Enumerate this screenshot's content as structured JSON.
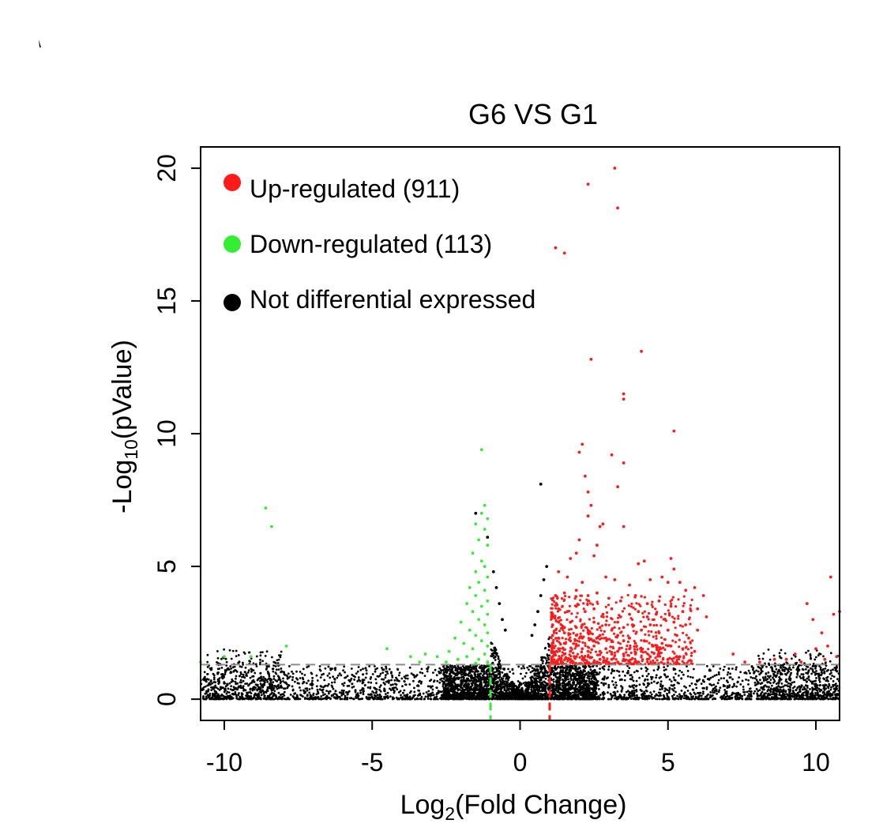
{
  "chart_data": {
    "type": "scatter",
    "title": "G6 VS G1",
    "xlabel": {
      "base": "Log",
      "sub": "2",
      "rest": "(Fold Change)"
    },
    "ylabel": {
      "base": "-Log",
      "sub": "10",
      "rest": "(pValue)"
    },
    "xlim": [
      -10.8,
      10.8
    ],
    "ylim": [
      -0.8,
      20.8
    ],
    "xticks": [
      -10,
      -5,
      0,
      5,
      10
    ],
    "xtick_labels": [
      "-10",
      "-5",
      "0",
      "5",
      "10"
    ],
    "yticks": [
      0,
      5,
      10,
      15,
      20
    ],
    "ytick_labels": [
      "0",
      "5",
      "10",
      "15",
      "20"
    ],
    "thresholds": {
      "log2fc_low": -1,
      "log2fc_high": 1,
      "neg_log10_p": 1.3
    },
    "legend": {
      "placement": "top-left",
      "items": [
        {
          "label": "Up-regulated (911)",
          "color": "#ff1a1a"
        },
        {
          "label": "Down-regulated (113)",
          "color": "#33ee33"
        },
        {
          "label": "Not differential expressed",
          "color": "#000000"
        }
      ]
    },
    "colors": {
      "up": "#ff1a1a",
      "down": "#33ee33",
      "ns": "#000000",
      "threshold_line": "#8c8c8c"
    },
    "series": [
      {
        "name": "Up-regulated (911)",
        "color": "#ff1a1a",
        "points": [
          [
            3.2,
            20.0
          ],
          [
            2.3,
            19.4
          ],
          [
            3.3,
            18.5
          ],
          [
            1.5,
            16.8
          ],
          [
            1.2,
            17.0
          ],
          [
            4.1,
            13.1
          ],
          [
            2.4,
            12.8
          ],
          [
            3.5,
            11.5
          ],
          [
            3.5,
            11.3
          ],
          [
            5.2,
            10.1
          ],
          [
            2.1,
            9.6
          ],
          [
            2.0,
            9.3
          ],
          [
            3.1,
            9.2
          ],
          [
            3.5,
            8.9
          ],
          [
            2.2,
            8.4
          ],
          [
            3.3,
            8.0
          ],
          [
            2.3,
            7.8
          ],
          [
            2.4,
            7.3
          ],
          [
            2.3,
            6.9
          ],
          [
            2.7,
            6.5
          ],
          [
            2.8,
            6.6
          ],
          [
            3.5,
            6.5
          ],
          [
            2.0,
            6.0
          ],
          [
            2.6,
            5.8
          ],
          [
            1.9,
            5.5
          ],
          [
            1.7,
            5.3
          ],
          [
            2.5,
            5.4
          ],
          [
            4.2,
            5.2
          ],
          [
            5.1,
            5.3
          ],
          [
            4.0,
            5.1
          ],
          [
            5.2,
            4.9
          ],
          [
            4.8,
            4.6
          ],
          [
            5.0,
            4.4
          ],
          [
            5.4,
            4.4
          ],
          [
            6.2,
            3.9
          ],
          [
            5.9,
            4.2
          ],
          [
            5.6,
            4.1
          ],
          [
            1.3,
            4.8
          ],
          [
            1.6,
            4.6
          ],
          [
            2.1,
            4.4
          ],
          [
            2.9,
            4.6
          ],
          [
            3.2,
            4.5
          ],
          [
            3.7,
            4.3
          ],
          [
            4.4,
            4.5
          ],
          [
            1.2,
            3.9
          ],
          [
            1.5,
            4.0
          ],
          [
            1.9,
            4.1
          ],
          [
            2.3,
            3.9
          ],
          [
            2.6,
            4.0
          ],
          [
            3.0,
            3.8
          ],
          [
            3.4,
            3.7
          ],
          [
            3.9,
            3.9
          ],
          [
            4.3,
            3.6
          ],
          [
            4.7,
            3.7
          ],
          [
            5.1,
            3.5
          ],
          [
            5.5,
            3.3
          ],
          [
            6.0,
            3.4
          ],
          [
            6.3,
            3.1
          ],
          [
            10.5,
            4.6
          ],
          [
            10.6,
            3.2
          ],
          [
            10.8,
            3.3
          ],
          [
            9.7,
            3.6
          ],
          [
            9.9,
            3.0
          ],
          [
            10.2,
            2.5
          ],
          [
            10.4,
            2.0
          ],
          [
            10.0,
            1.9
          ],
          [
            10.7,
            1.6
          ],
          [
            9.3,
            1.7
          ],
          [
            9.0,
            1.5
          ],
          [
            8.6,
            1.5
          ],
          [
            7.2,
            1.7
          ],
          [
            7.6,
            1.4
          ],
          [
            8.1,
            1.4
          ],
          [
            9.5,
            1.4
          ],
          [
            10.3,
            1.5
          ],
          [
            1.1,
            3.2
          ],
          [
            1.3,
            3.4
          ],
          [
            1.6,
            3.3
          ],
          [
            1.9,
            3.5
          ],
          [
            2.2,
            3.3
          ],
          [
            2.5,
            3.4
          ],
          [
            2.8,
            3.2
          ],
          [
            3.1,
            3.4
          ],
          [
            3.4,
            3.1
          ],
          [
            3.7,
            3.2
          ],
          [
            4.0,
            3.3
          ],
          [
            4.3,
            3.1
          ],
          [
            4.6,
            3.2
          ],
          [
            4.9,
            3.0
          ],
          [
            5.2,
            2.9
          ],
          [
            5.6,
            2.8
          ],
          [
            6.0,
            2.6
          ],
          [
            1.1,
            2.8
          ],
          [
            1.3,
            2.9
          ],
          [
            1.5,
            2.7
          ],
          [
            1.7,
            2.9
          ],
          [
            1.9,
            2.7
          ],
          [
            2.1,
            2.8
          ],
          [
            2.3,
            2.6
          ],
          [
            2.5,
            2.9
          ],
          [
            2.7,
            2.7
          ],
          [
            2.9,
            2.8
          ],
          [
            3.1,
            2.6
          ],
          [
            3.3,
            2.9
          ],
          [
            3.5,
            2.7
          ],
          [
            3.8,
            2.8
          ],
          [
            4.1,
            2.6
          ],
          [
            4.4,
            2.8
          ],
          [
            4.7,
            2.5
          ],
          [
            5.0,
            2.6
          ],
          [
            5.3,
            2.4
          ],
          [
            5.7,
            2.3
          ],
          [
            1.1,
            2.4
          ],
          [
            1.3,
            2.3
          ],
          [
            1.5,
            2.5
          ],
          [
            1.7,
            2.2
          ],
          [
            1.9,
            2.4
          ],
          [
            2.1,
            2.3
          ],
          [
            2.3,
            2.5
          ],
          [
            2.5,
            2.2
          ],
          [
            2.7,
            2.4
          ],
          [
            2.9,
            2.3
          ],
          [
            3.1,
            2.2
          ],
          [
            3.3,
            2.4
          ],
          [
            3.5,
            2.2
          ],
          [
            3.7,
            2.3
          ],
          [
            3.9,
            2.1
          ],
          [
            4.2,
            2.2
          ],
          [
            4.5,
            2.0
          ],
          [
            4.8,
            2.1
          ],
          [
            5.1,
            2.0
          ],
          [
            5.5,
            1.9
          ],
          [
            5.9,
            1.8
          ],
          [
            1.1,
            2.0
          ],
          [
            1.3,
            1.9
          ],
          [
            1.5,
            2.1
          ],
          [
            1.7,
            1.8
          ],
          [
            1.9,
            2.0
          ],
          [
            2.1,
            1.9
          ],
          [
            2.3,
            1.8
          ],
          [
            2.5,
            2.0
          ],
          [
            2.7,
            1.8
          ],
          [
            2.9,
            1.9
          ],
          [
            3.1,
            1.7
          ],
          [
            3.3,
            1.8
          ],
          [
            3.5,
            1.7
          ],
          [
            3.7,
            1.9
          ],
          [
            3.9,
            1.7
          ],
          [
            4.1,
            1.8
          ],
          [
            4.4,
            1.6
          ],
          [
            4.7,
            1.7
          ],
          [
            5.0,
            1.5
          ],
          [
            5.4,
            1.6
          ],
          [
            1.1,
            1.6
          ],
          [
            1.3,
            1.5
          ],
          [
            1.5,
            1.7
          ],
          [
            1.7,
            1.5
          ],
          [
            1.9,
            1.6
          ],
          [
            2.1,
            1.5
          ],
          [
            2.3,
            1.6
          ],
          [
            2.5,
            1.4
          ],
          [
            2.7,
            1.5
          ],
          [
            2.9,
            1.4
          ],
          [
            3.1,
            1.5
          ],
          [
            3.3,
            1.4
          ],
          [
            3.5,
            1.5
          ],
          [
            3.7,
            1.4
          ],
          [
            4.0,
            1.4
          ],
          [
            4.3,
            1.5
          ],
          [
            1.2,
            1.4
          ],
          [
            1.4,
            1.35
          ],
          [
            1.8,
            1.4
          ],
          [
            2.2,
            1.35
          ],
          [
            2.6,
            1.4
          ],
          [
            3.0,
            1.35
          ]
        ]
      },
      {
        "name": "Down-regulated (113)",
        "color": "#33ee33",
        "points": [
          [
            -1.3,
            9.4
          ],
          [
            -8.6,
            7.2
          ],
          [
            -8.4,
            6.5
          ],
          [
            -1.2,
            7.3
          ],
          [
            -1.3,
            7.0
          ],
          [
            -1.1,
            6.8
          ],
          [
            -1.5,
            6.6
          ],
          [
            -1.2,
            6.4
          ],
          [
            -1.4,
            6.0
          ],
          [
            -1.1,
            5.8
          ],
          [
            -1.6,
            5.5
          ],
          [
            -1.3,
            5.2
          ],
          [
            -1.2,
            5.0
          ],
          [
            -1.5,
            4.8
          ],
          [
            -1.1,
            4.6
          ],
          [
            -1.4,
            4.4
          ],
          [
            -1.7,
            4.2
          ],
          [
            -1.2,
            4.1
          ],
          [
            -1.5,
            3.9
          ],
          [
            -1.1,
            3.7
          ],
          [
            -1.8,
            3.6
          ],
          [
            -1.3,
            3.5
          ],
          [
            -1.6,
            3.3
          ],
          [
            -1.1,
            3.2
          ],
          [
            -1.4,
            3.0
          ],
          [
            -2.0,
            2.9
          ],
          [
            -1.2,
            2.8
          ],
          [
            -1.7,
            2.6
          ],
          [
            -1.1,
            2.5
          ],
          [
            -1.5,
            2.4
          ],
          [
            -2.2,
            2.3
          ],
          [
            -1.3,
            2.2
          ],
          [
            -1.9,
            2.1
          ],
          [
            -1.1,
            2.0
          ],
          [
            -1.6,
            1.9
          ],
          [
            -2.4,
            1.8
          ],
          [
            -1.2,
            1.7
          ],
          [
            -1.8,
            1.6
          ],
          [
            -1.4,
            1.5
          ],
          [
            -2.1,
            1.5
          ],
          [
            -2.8,
            1.6
          ],
          [
            -3.2,
            1.7
          ],
          [
            -3.7,
            1.6
          ],
          [
            -4.5,
            1.9
          ],
          [
            -7.9,
            2.0
          ],
          [
            -9.1,
            1.6
          ],
          [
            -10.0,
            1.6
          ],
          [
            -10.8,
            1.4
          ],
          [
            -3.4,
            1.4
          ],
          [
            -2.5,
            1.4
          ],
          [
            -1.5,
            1.35
          ],
          [
            -1.1,
            1.4
          ]
        ]
      },
      {
        "name": "Not differential expressed",
        "color": "#000000",
        "points": [
          [
            -1.5,
            7.0
          ],
          [
            0.7,
            8.1
          ],
          [
            -1.1,
            6.1
          ],
          [
            0.9,
            5.0
          ],
          [
            -0.9,
            4.8
          ],
          [
            0.8,
            4.5
          ],
          [
            -0.8,
            4.2
          ],
          [
            0.7,
            3.9
          ],
          [
            -0.7,
            3.6
          ],
          [
            0.6,
            3.3
          ],
          [
            -0.6,
            3.0
          ],
          [
            0.5,
            2.8
          ],
          [
            -0.5,
            2.6
          ],
          [
            0.4,
            2.4
          ]
        ]
      }
    ],
    "background_ns_cloud": {
      "note_values": "dense band of non-significant genes",
      "x_range": [
        -10.8,
        10.8
      ],
      "y_range": [
        0,
        1.3
      ]
    }
  }
}
